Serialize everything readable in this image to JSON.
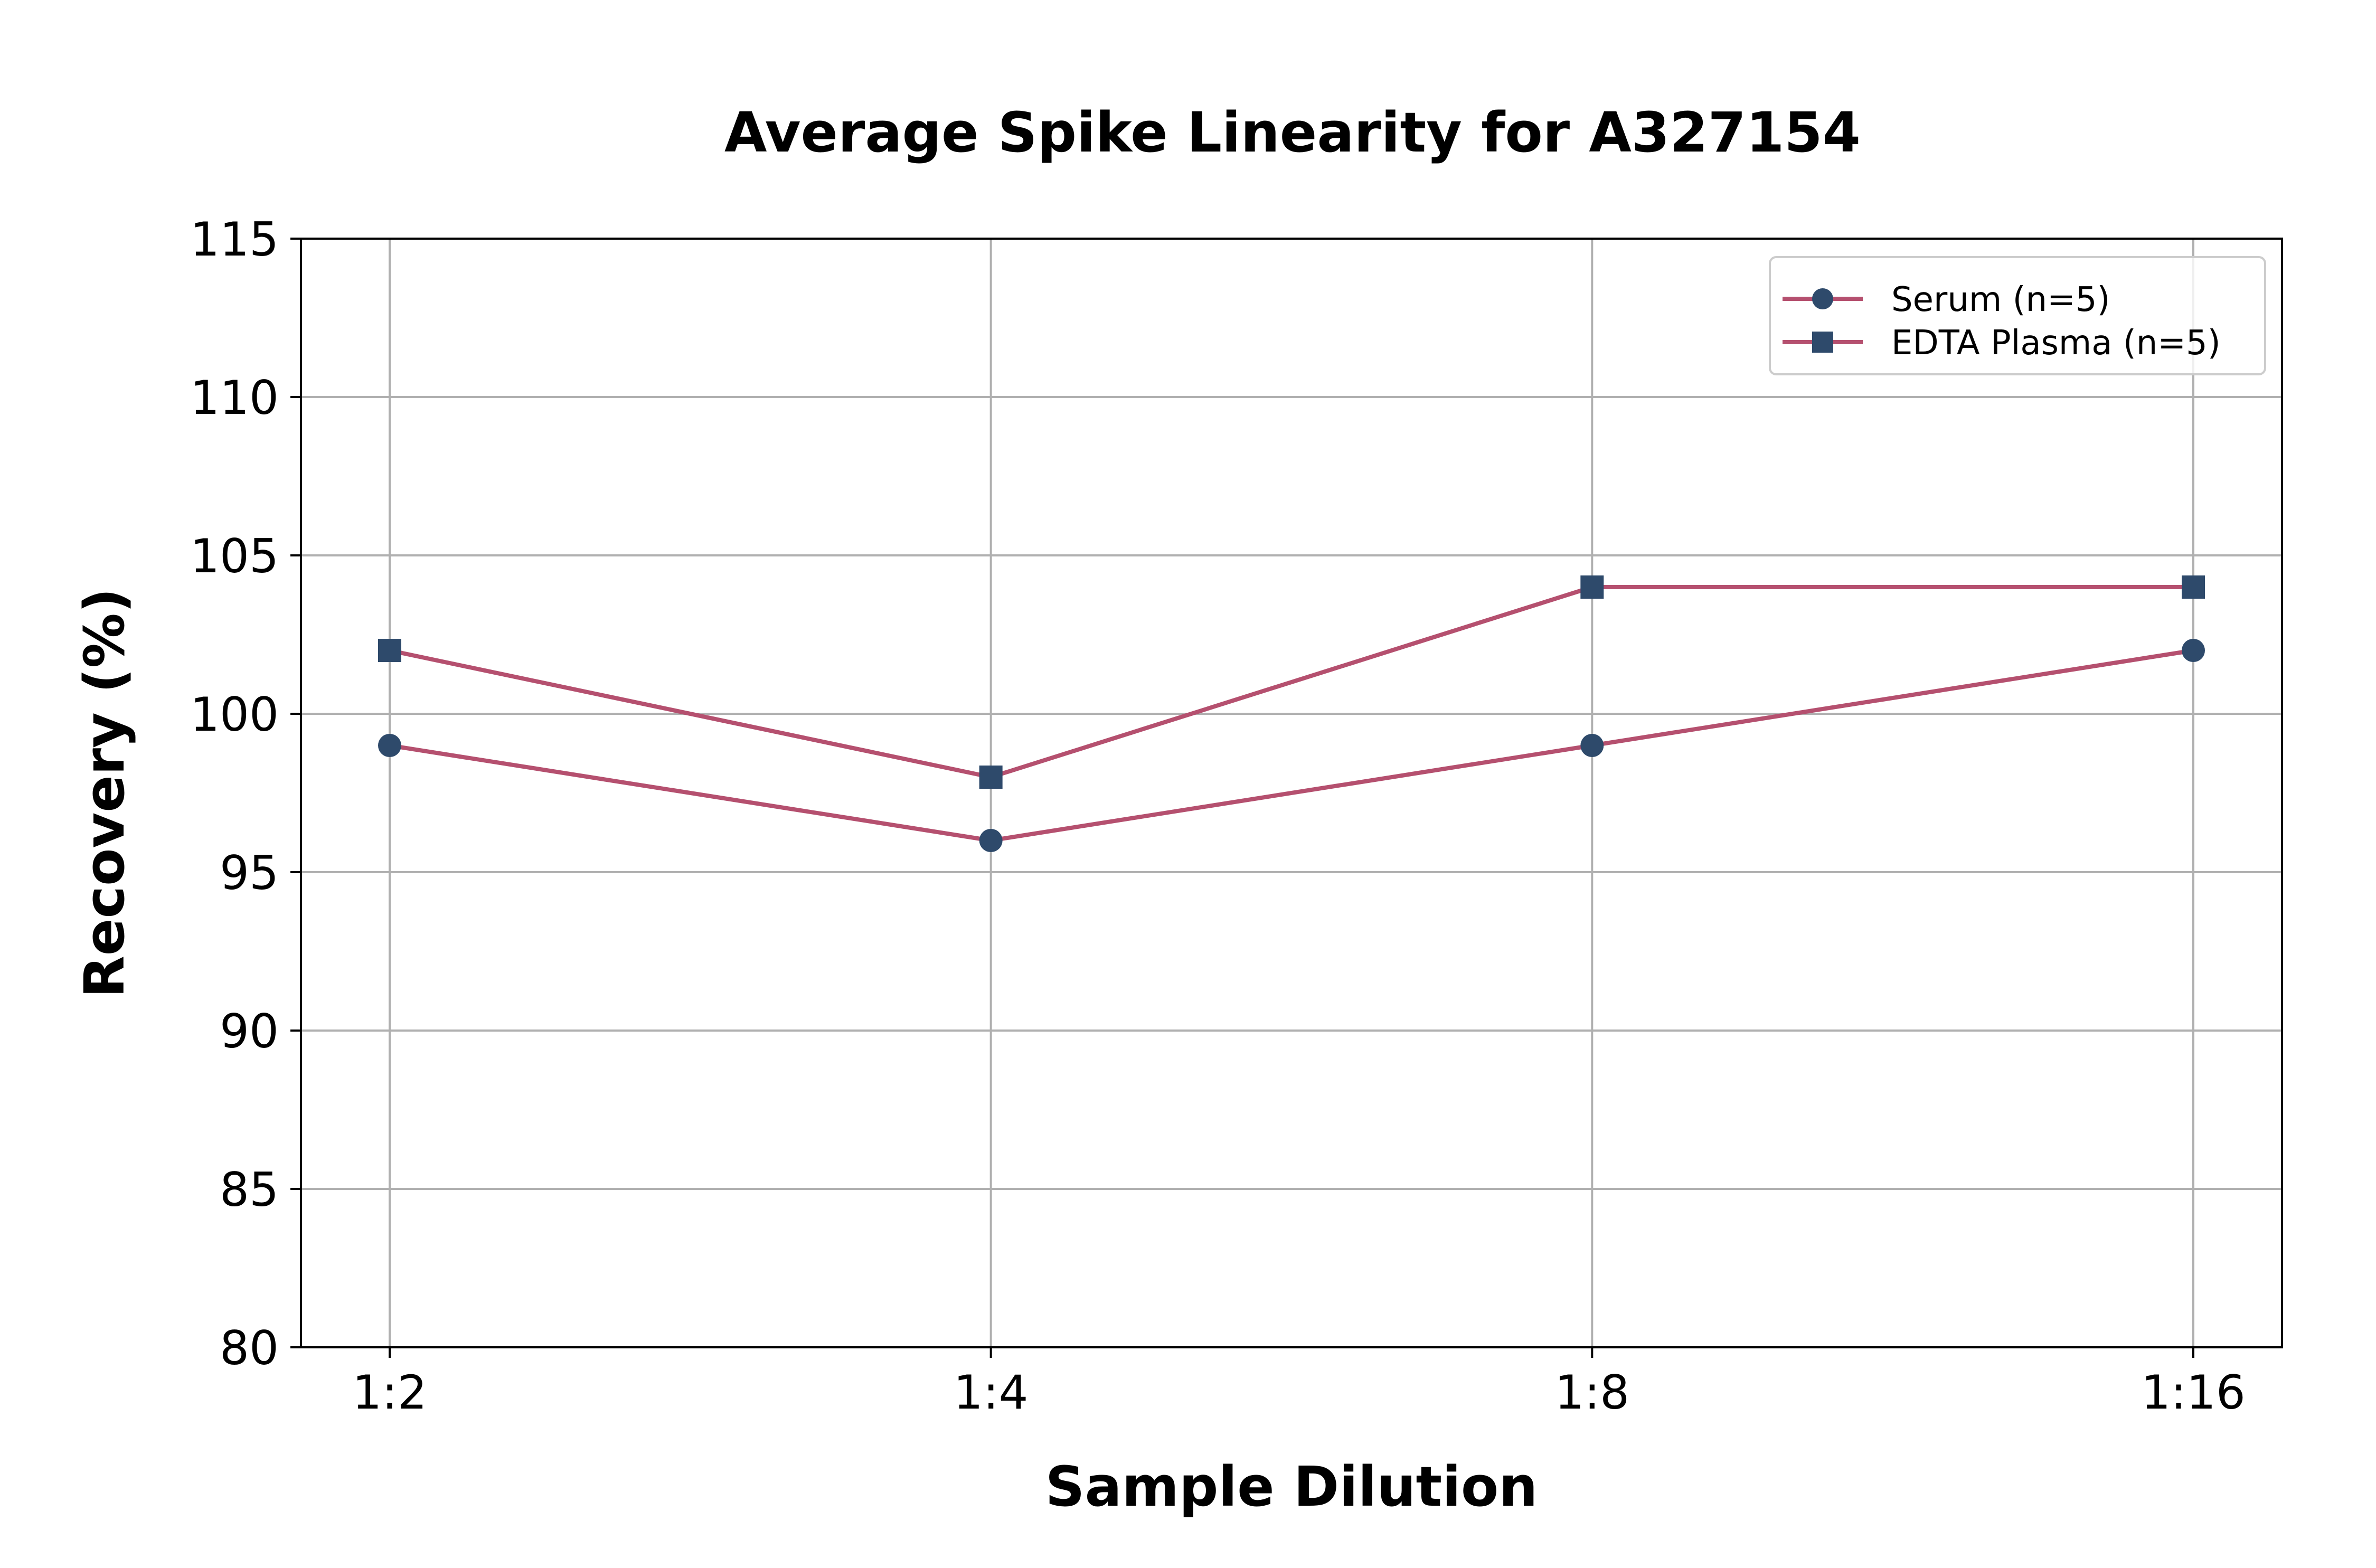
{
  "chart_data": {
    "type": "line",
    "title": "Average Spike Linearity for A327154",
    "xlabel": "Sample Dilution",
    "ylabel": "Recovery (%)",
    "categories": [
      "1:2",
      "1:4",
      "1:8",
      "1:16"
    ],
    "ylim": [
      80,
      115
    ],
    "yticks": [
      80,
      85,
      90,
      95,
      100,
      105,
      110,
      115
    ],
    "grid": true,
    "legend_position": "top-right",
    "line_color": "#b5506f",
    "marker_color": "#2e4a6b",
    "series": [
      {
        "name": "Serum (n=5)",
        "marker": "circle",
        "values": [
          99,
          96,
          99,
          102
        ]
      },
      {
        "name": "EDTA Plasma (n=5)",
        "marker": "square",
        "values": [
          102,
          98,
          104,
          104
        ]
      }
    ]
  }
}
